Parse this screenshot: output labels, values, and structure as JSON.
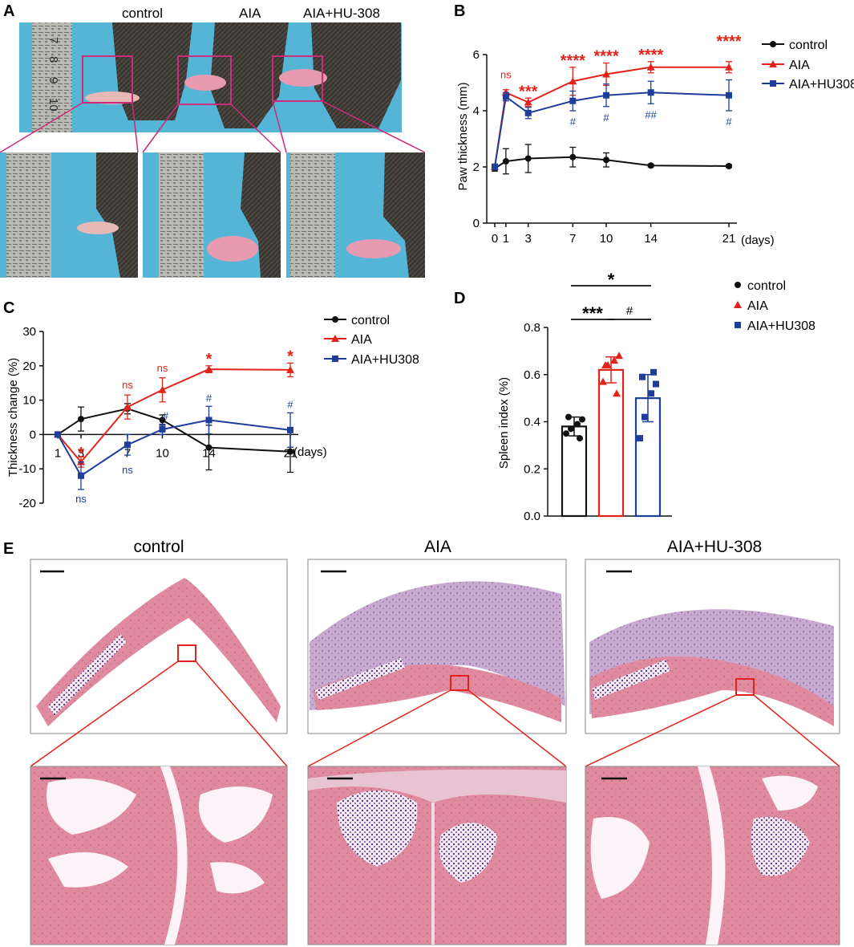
{
  "panels": {
    "a": {
      "letter": "A",
      "groups": [
        "control",
        "AIA",
        "AIA+HU-308"
      ],
      "ruler_marks": [
        "7",
        "8",
        "9",
        "10"
      ]
    },
    "b": {
      "letter": "B"
    },
    "c": {
      "letter": "C"
    },
    "d": {
      "letter": "D"
    },
    "e": {
      "letter": "E",
      "groups": [
        "control",
        "AIA",
        "AIA+HU-308"
      ]
    }
  },
  "colors": {
    "control": "#111111",
    "aia": "#e3231b",
    "hu": "#1f3e9a",
    "bg_blue": "#55b5d6"
  },
  "chart_data": [
    {
      "id": "b",
      "type": "line",
      "ylabel": "Paw thickness (mm)",
      "xunit": "(days)",
      "x": [
        0,
        1,
        3,
        7,
        10,
        14,
        21
      ],
      "xticks": [
        "0",
        "1",
        "3",
        "7",
        "10",
        "14",
        "21"
      ],
      "ylim": [
        0,
        6
      ],
      "yticks": [
        "0",
        "2",
        "4",
        "6"
      ],
      "legend": [
        "control",
        "AIA",
        "AIA+HU308"
      ],
      "series": [
        {
          "name": "control",
          "values": [
            1.95,
            2.2,
            2.3,
            2.35,
            2.25,
            2.05,
            2.03
          ],
          "err": [
            0.1,
            0.45,
            0.5,
            0.35,
            0.25,
            0.05,
            0.05
          ]
        },
        {
          "name": "AIA",
          "values": [
            2.0,
            4.65,
            4.3,
            5.05,
            5.3,
            5.55,
            5.55
          ],
          "err": [
            0.1,
            0.1,
            0.15,
            0.5,
            0.4,
            0.2,
            0.2
          ]
        },
        {
          "name": "AIA+HU308",
          "values": [
            2.0,
            4.5,
            3.92,
            4.35,
            4.55,
            4.65,
            4.55
          ],
          "err": [
            0.1,
            0.15,
            0.2,
            0.35,
            0.4,
            0.4,
            0.55
          ]
        }
      ],
      "sig_aia": [
        "",
        "ns",
        "***",
        "****",
        "****",
        "****",
        "****"
      ],
      "sig_hu": [
        "",
        "",
        "",
        "#",
        "#",
        "##",
        "#"
      ]
    },
    {
      "id": "c",
      "type": "line",
      "ylabel": "Thickness change (%)",
      "xunit": "(days)",
      "x": [
        1,
        3,
        7,
        10,
        14,
        21
      ],
      "xticks": [
        "1",
        "3",
        "7",
        "10",
        "14",
        "21"
      ],
      "ylim": [
        -20,
        30
      ],
      "yticks": [
        "-20",
        "-10",
        "0",
        "10",
        "20",
        "30"
      ],
      "legend": [
        "control",
        "AIA",
        "AIA+HU308"
      ],
      "series": [
        {
          "name": "control",
          "values": [
            0,
            4.5,
            7.5,
            4.2,
            -3.8,
            -5
          ],
          "err": [
            0,
            3.5,
            1.5,
            1.5,
            6.5,
            6
          ]
        },
        {
          "name": "AIA",
          "values": [
            0,
            -8,
            8,
            13,
            19,
            18.8
          ],
          "err": [
            0,
            1.5,
            3.5,
            3.5,
            1,
            2
          ]
        },
        {
          "name": "AIA+HU308",
          "values": [
            0,
            -12,
            -3,
            1.5,
            4.2,
            1.3
          ],
          "err": [
            0,
            4,
            3,
            1.5,
            4,
            5
          ]
        }
      ],
      "sig_aia": [
        "",
        "*",
        "ns",
        "ns",
        "*",
        "*"
      ],
      "sig_hu": [
        "",
        "ns",
        "ns",
        "#",
        "#",
        "#"
      ]
    },
    {
      "id": "d",
      "type": "bar",
      "ylabel": "Spleen index (%)",
      "categories": [
        "control",
        "AIA",
        "AIA+HU308"
      ],
      "values": [
        0.38,
        0.62,
        0.5
      ],
      "err": [
        0.04,
        0.055,
        0.1
      ],
      "points": [
        [
          0.35,
          0.37,
          0.39,
          0.41,
          0.42,
          0.33
        ],
        [
          0.57,
          0.64,
          0.66,
          0.68,
          0.64,
          0.52
        ],
        [
          0.33,
          0.42,
          0.52,
          0.56,
          0.59,
          0.61
        ]
      ],
      "ylim": [
        0,
        0.8
      ],
      "yticks": [
        "0.0",
        "0.2",
        "0.4",
        "0.6",
        "0.8"
      ],
      "brackets": [
        {
          "from": 0,
          "to": 1,
          "label": "***"
        },
        {
          "from": 1,
          "to": 2,
          "label": "#"
        },
        {
          "from": 0,
          "to": 2,
          "label": "*"
        }
      ]
    }
  ]
}
